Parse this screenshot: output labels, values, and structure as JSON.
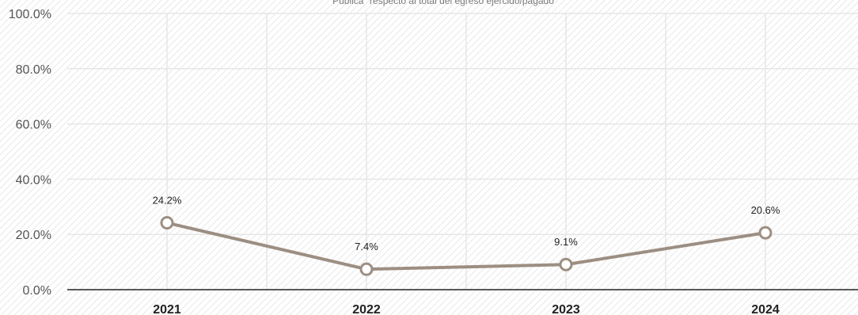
{
  "chart_data": {
    "type": "line",
    "subtitle": "Pública\" respecto al total del egreso ejercido/pagado",
    "categories": [
      "2021",
      "2022",
      "2023",
      "2024"
    ],
    "series": [
      {
        "values": [
          24.2,
          7.4,
          9.1,
          20.6
        ],
        "labels": [
          "24.2%",
          "7.4%",
          "9.1%",
          "20.6%"
        ]
      }
    ],
    "ylim": [
      0,
      100
    ],
    "yticks": [
      "0.0%",
      "20.0%",
      "40.0%",
      "60.0%",
      "80.0%",
      "100.0%"
    ],
    "ytick_values": [
      0,
      20,
      40,
      60,
      80,
      100
    ],
    "grid": true,
    "legend": "none",
    "colors": {
      "line": "#9c8e82",
      "marker_fill": "#ffffff",
      "axis": "#222222",
      "grid": "#e6e6e6",
      "hatch": "#dcdcdc"
    }
  }
}
